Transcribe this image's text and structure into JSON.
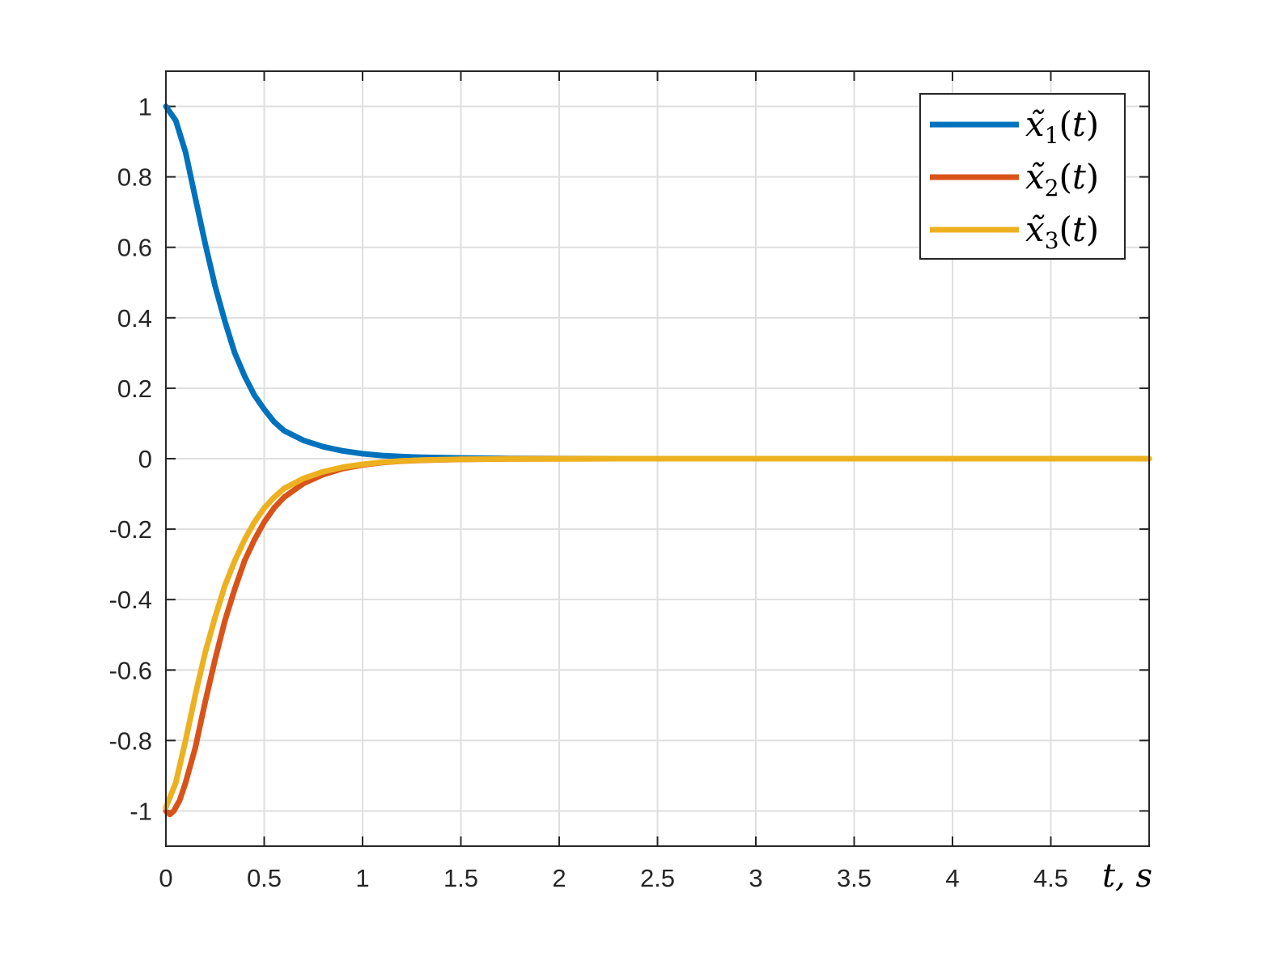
{
  "chart_data": {
    "type": "line",
    "title": "",
    "xlabel": "t, s",
    "ylabel": "",
    "xlim": [
      0,
      5
    ],
    "ylim": [
      -1.1,
      1.1
    ],
    "grid": true,
    "legend_position": "top-right",
    "x_ticks": [
      0,
      0.5,
      1,
      1.5,
      2,
      2.5,
      3,
      3.5,
      4,
      4.5
    ],
    "x_tick_labels": [
      "0",
      "0.5",
      "1",
      "1.5",
      "2",
      "2.5",
      "3",
      "3.5",
      "4",
      "4.5"
    ],
    "y_ticks": [
      -1,
      -0.8,
      -0.6,
      -0.4,
      -0.2,
      0,
      0.2,
      0.4,
      0.6,
      0.8,
      1
    ],
    "y_tick_labels": [
      "-1",
      "-0.8",
      "-0.6",
      "-0.4",
      "-0.2",
      "0",
      "0.2",
      "0.4",
      "0.6",
      "0.8",
      "1"
    ],
    "series": [
      {
        "name": "x̃1(t)",
        "color": "#0072BD",
        "x": [
          0,
          0.05,
          0.1,
          0.15,
          0.2,
          0.25,
          0.3,
          0.35,
          0.4,
          0.45,
          0.5,
          0.55,
          0.6,
          0.7,
          0.8,
          0.9,
          1.0,
          1.1,
          1.2,
          1.3,
          1.5,
          1.75,
          2,
          2.5,
          3,
          3.5,
          4,
          4.5,
          5
        ],
        "y": [
          1.0,
          0.96,
          0.87,
          0.74,
          0.61,
          0.49,
          0.39,
          0.3,
          0.235,
          0.18,
          0.14,
          0.105,
          0.08,
          0.052,
          0.034,
          0.022,
          0.014,
          0.009,
          0.006,
          0.004,
          0.002,
          0.0007,
          0.0002,
          0,
          0,
          0,
          0,
          0,
          0
        ]
      },
      {
        "name": "x̃2(t)",
        "color": "#D95319",
        "x": [
          0,
          0.02,
          0.04,
          0.07,
          0.1,
          0.15,
          0.2,
          0.25,
          0.3,
          0.35,
          0.4,
          0.45,
          0.5,
          0.55,
          0.6,
          0.7,
          0.8,
          0.9,
          1.0,
          1.1,
          1.2,
          1.3,
          1.5,
          1.75,
          2,
          2.5,
          3,
          3.5,
          4,
          4.5,
          5
        ],
        "y": [
          -1.0,
          -1.01,
          -1.0,
          -0.97,
          -0.92,
          -0.82,
          -0.69,
          -0.57,
          -0.46,
          -0.37,
          -0.29,
          -0.23,
          -0.18,
          -0.14,
          -0.11,
          -0.07,
          -0.045,
          -0.028,
          -0.018,
          -0.011,
          -0.007,
          -0.0045,
          -0.002,
          -0.0006,
          -0.0002,
          0,
          0,
          0,
          0,
          0,
          0
        ]
      },
      {
        "name": "x̃3(t)",
        "color": "#EDB120",
        "x": [
          0,
          0.05,
          0.1,
          0.15,
          0.2,
          0.25,
          0.3,
          0.35,
          0.4,
          0.45,
          0.5,
          0.55,
          0.6,
          0.7,
          0.8,
          0.9,
          1.0,
          1.1,
          1.2,
          1.3,
          1.5,
          1.75,
          2,
          2.5,
          3,
          3.5,
          4,
          4.5,
          5
        ],
        "y": [
          -0.99,
          -0.92,
          -0.8,
          -0.67,
          -0.55,
          -0.45,
          -0.36,
          -0.29,
          -0.23,
          -0.18,
          -0.14,
          -0.11,
          -0.085,
          -0.056,
          -0.037,
          -0.024,
          -0.016,
          -0.01,
          -0.0065,
          -0.004,
          -0.0018,
          -0.0006,
          -0.0002,
          0,
          0,
          0,
          0,
          0,
          0
        ]
      }
    ]
  }
}
